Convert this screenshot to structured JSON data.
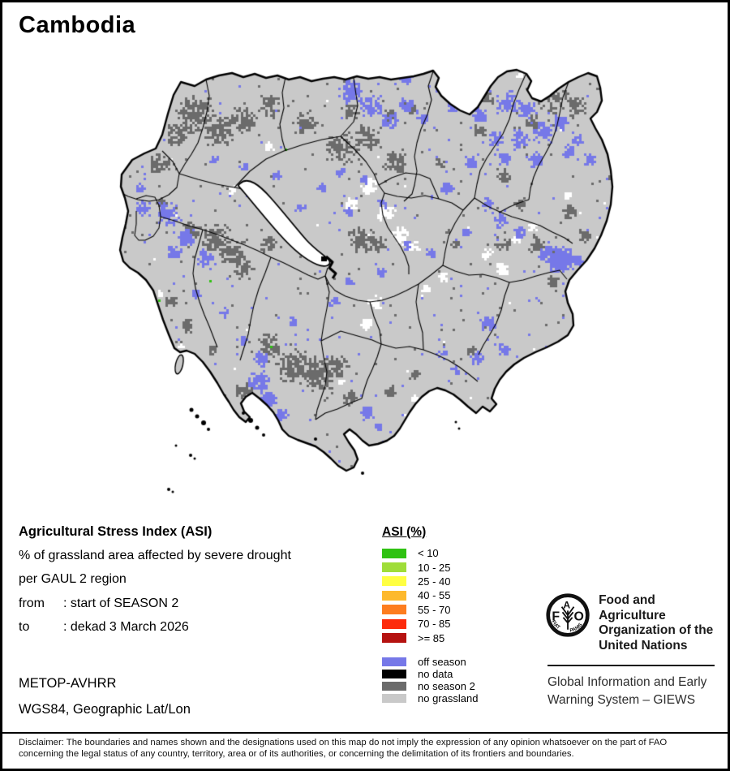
{
  "header": {
    "title": "Cambodia"
  },
  "map": {
    "description": "Agricultural Stress Index pixel map of Cambodia with GAUL 2 boundaries",
    "colors": {
      "land_base": "#c9c9c9",
      "boundary": "#000000",
      "water": "#ffffff",
      "asi_green_speck": "#2fc212"
    }
  },
  "info": {
    "title": "Agricultural Stress Index (ASI)",
    "subtitle1": "% of grassland area affected by severe drought",
    "subtitle2": "per GAUL 2 region",
    "period": [
      {
        "label": "from",
        "value": ": start of SEASON 2"
      },
      {
        "label": "to",
        "value": ": dekad 3 March 2026"
      }
    ],
    "sensor": "METOP-AVHRR",
    "projection": "WGS84, Geographic Lat/Lon"
  },
  "legend": {
    "title": "ASI (%)",
    "classes": [
      {
        "label": "< 10",
        "color": "#2fc212"
      },
      {
        "label": "10 - 25",
        "color": "#9fdd38"
      },
      {
        "label": "25 - 40",
        "color": "#ffff42"
      },
      {
        "label": "40 - 55",
        "color": "#fdb92d"
      },
      {
        "label": "55 - 70",
        "color": "#fd7d1f"
      },
      {
        "label": "70 - 85",
        "color": "#fd2b0c"
      },
      {
        "label": ">= 85",
        "color": "#b51210"
      }
    ],
    "extra_classes": [
      {
        "label": "off season",
        "color": "#7678e8"
      },
      {
        "label": "no data",
        "color": "#000000"
      },
      {
        "label": "no season 2",
        "color": "#6b6b6b"
      },
      {
        "label": "no grassland",
        "color": "#c9c9c9"
      }
    ]
  },
  "org": {
    "logo_letters": [
      "F",
      "A",
      "O"
    ],
    "logo_motto": [
      "FIAT",
      "PANIS"
    ],
    "name_lines": [
      "Food and Agriculture",
      "Organization of the",
      "United Nations"
    ],
    "program_lines": [
      "Global Information and Early",
      "Warning System – GIEWS"
    ]
  },
  "disclaimer": {
    "line1": "Disclaimer: The boundaries and names shown and the designations used on this map do not imply the expression of any opinion whatsoever on the part of FAO",
    "line2": "concerning the legal status of any country, territory, area or of its authorities, or concerning the delimitation of its frontiers and boundaries."
  }
}
